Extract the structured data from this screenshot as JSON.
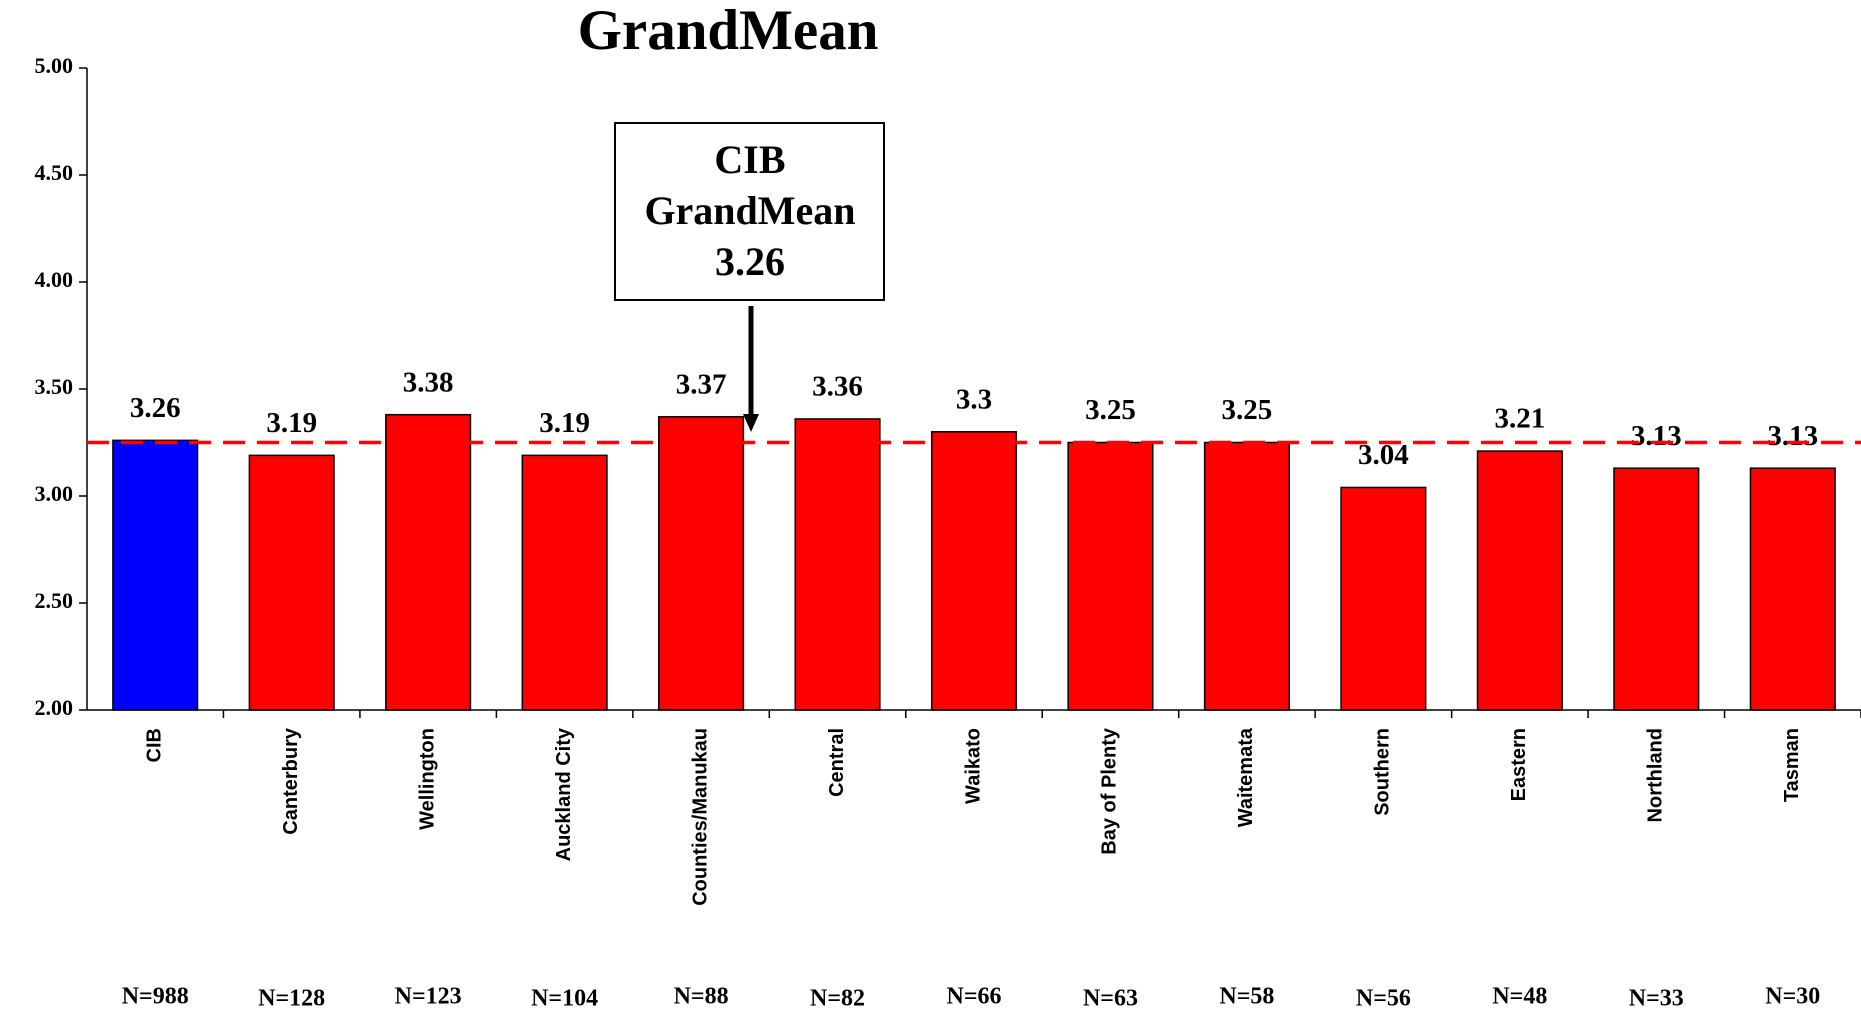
{
  "chart_data": {
    "type": "bar",
    "title": "GrandMean",
    "categories": [
      "CIB",
      "Canterbury",
      "Wellington",
      "Auckland City",
      "Counties/Manukau",
      "Central",
      "Waikato",
      "Bay of Plenty",
      "Waitemata",
      "Southern",
      "Eastern",
      "Northland",
      "Tasman"
    ],
    "values": [
      3.26,
      3.19,
      3.38,
      3.19,
      3.37,
      3.36,
      3.3,
      3.25,
      3.25,
      3.04,
      3.21,
      3.13,
      3.13
    ],
    "colors": [
      "#0000ff",
      "#ff0000",
      "#ff0000",
      "#ff0000",
      "#ff0000",
      "#ff0000",
      "#ff0000",
      "#ff0000",
      "#ff0000",
      "#ff0000",
      "#ff0000",
      "#ff0000",
      "#ff0000"
    ],
    "n_labels": [
      "N=988",
      "N=128",
      "N=123",
      "N=104",
      "N=88",
      "N=82",
      "N=66",
      "N=63",
      "N=58",
      "N=56",
      "N=48",
      "N=33",
      "N=30"
    ],
    "ylim": [
      2,
      5
    ],
    "yticks": [
      {
        "value": 2,
        "label": "2.00"
      },
      {
        "value": 2.5,
        "label": "2.50"
      },
      {
        "value": 3,
        "label": "3.00"
      },
      {
        "value": 3.5,
        "label": "3.50"
      },
      {
        "value": 4,
        "label": "4.00"
      },
      {
        "value": 4.5,
        "label": "4.50"
      },
      {
        "value": 5,
        "label": "5.00"
      }
    ],
    "reference_line": 3.25,
    "reference_color": "#ff0000",
    "annotation": [
      "CIB",
      "GrandMean",
      "3.26"
    ]
  }
}
